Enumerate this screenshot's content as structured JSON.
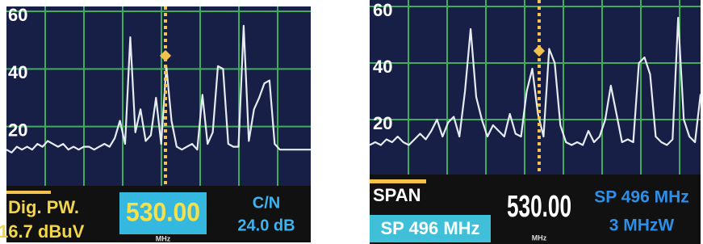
{
  "chart_data": [
    {
      "type": "line",
      "color": "#e6ecef",
      "ylim": [
        0,
        60
      ],
      "yticks": [
        20,
        40,
        60
      ],
      "grid": true,
      "values": [
        12,
        11,
        13,
        12,
        13,
        12,
        14,
        13,
        15,
        14,
        13,
        14,
        12,
        13,
        12,
        13,
        13,
        12,
        13,
        14,
        13,
        16,
        22,
        14,
        51,
        18,
        26,
        15,
        17,
        30,
        14,
        41,
        22,
        13,
        12,
        13,
        14,
        12,
        31,
        14,
        18,
        41,
        40,
        14,
        13,
        13,
        55,
        15,
        26,
        30,
        35,
        36,
        14,
        12,
        12,
        12,
        12,
        12,
        12,
        12
      ],
      "mode_label": "Dig. PW.",
      "reading": "16.7 dBuV",
      "frequency": "530.00",
      "frequency_unit": "MHz",
      "cn_label": "C/N",
      "cn_value": "24.0 dB"
    },
    {
      "type": "line",
      "color": "#e6ecef",
      "ylim": [
        0,
        60
      ],
      "yticks": [
        20,
        40,
        60
      ],
      "grid": true,
      "values": [
        11,
        12,
        11,
        13,
        12,
        14,
        12,
        11,
        13,
        15,
        13,
        16,
        20,
        14,
        19,
        21,
        14,
        30,
        52,
        28,
        20,
        14,
        18,
        16,
        14,
        22,
        15,
        14,
        30,
        38,
        22,
        14,
        45,
        40,
        18,
        12,
        11,
        12,
        11,
        16,
        12,
        14,
        20,
        32,
        22,
        12,
        13,
        12,
        40,
        42,
        36,
        14,
        12,
        11,
        13,
        56,
        20,
        14,
        12,
        29
      ],
      "mode_label": "SPAN",
      "span_box": "SP 496 MHz",
      "frequency": "530.00",
      "frequency_unit": "MHz",
      "span_label": "SP 496 MHz",
      "rbw": "3 MHzW"
    }
  ]
}
